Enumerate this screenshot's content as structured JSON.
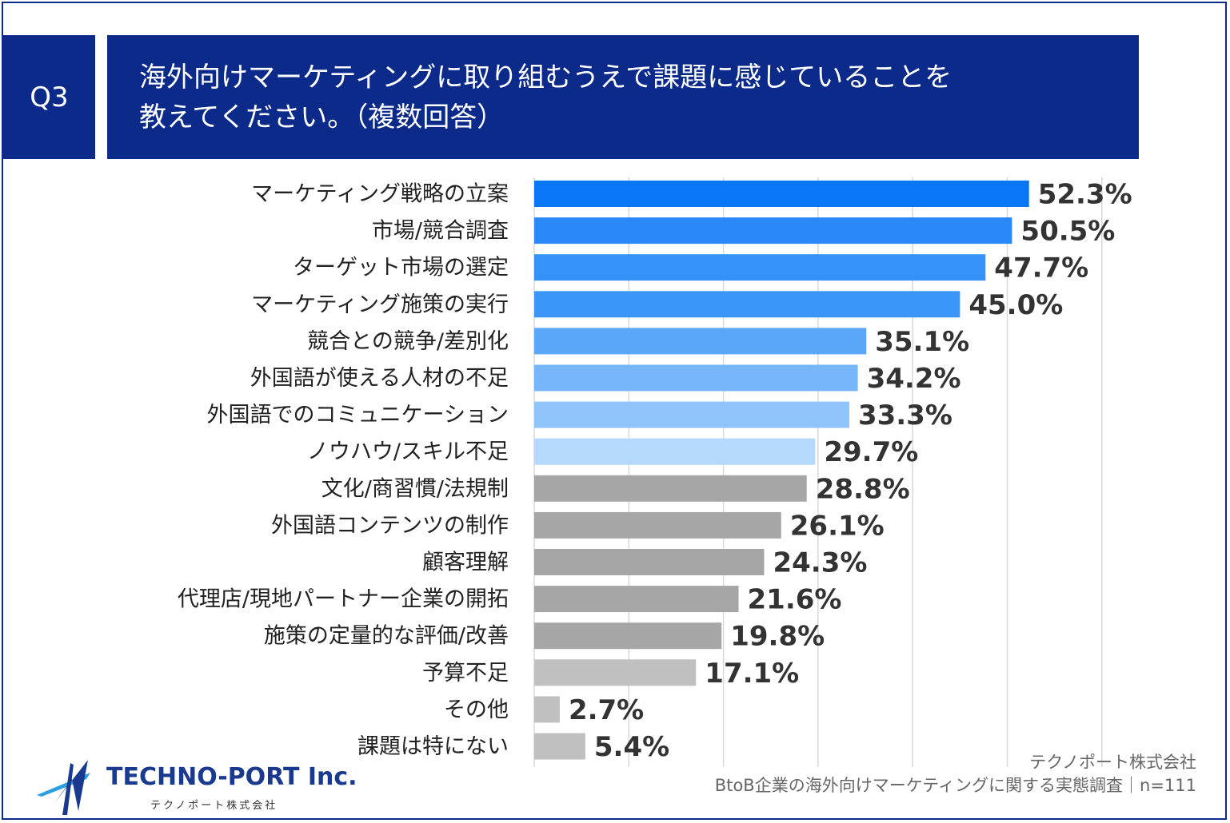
{
  "header": {
    "question_label": "Q3",
    "title_line1": "海外向けマーケティングに取り組むうえで課題に感じていることを",
    "title_line2": "教えてください。（複数回答）"
  },
  "chart_data": {
    "type": "bar",
    "orientation": "horizontal",
    "title": "海外向けマーケティングに取り組むうえで課題に感じていることを教えてください。（複数回答）",
    "categories": [
      "マーケティング戦略の立案",
      "市場/競合調査",
      "ターゲット市場の選定",
      "マーケティング施策の実行",
      "競合との競争/差別化",
      "外国語が使える人材の不足",
      "外国語でのコミュニケーション",
      "ノウハウ/スキル不足",
      "文化/商習慣/法規制",
      "外国語コンテンツの制作",
      "顧客理解",
      "代理店/現地パートナー企業の開拓",
      "施策の定量的な評価/改善",
      "予算不足",
      "その他",
      "課題は特にない"
    ],
    "values": [
      52.3,
      50.5,
      47.7,
      45.0,
      35.1,
      34.2,
      33.3,
      29.7,
      28.8,
      26.1,
      24.3,
      21.6,
      19.8,
      17.1,
      2.7,
      5.4
    ],
    "value_labels": [
      "52.3%",
      "50.5%",
      "47.7%",
      "45.0%",
      "35.1%",
      "34.2%",
      "33.3%",
      "29.7%",
      "28.8%",
      "26.1%",
      "24.3%",
      "21.6%",
      "19.8%",
      "17.1%",
      "2.7%",
      "5.4%"
    ],
    "colors": [
      "#0a75f5",
      "#2b89f7",
      "#3592f8",
      "#3b96f8",
      "#5aa7fa",
      "#77b6fb",
      "#92c4fc",
      "#b5d8fd",
      "#a6a6a6",
      "#a6a6a6",
      "#a6a6a6",
      "#a6a6a6",
      "#a6a6a6",
      "#c0c0c0",
      "#c0c0c0",
      "#c0c0c0"
    ],
    "xlim": [
      0,
      60
    ],
    "grid": true,
    "gridline_values": [
      10,
      20,
      30,
      40,
      50,
      60
    ],
    "unit": "%"
  },
  "footer": {
    "logo_name": "TECHNO-PORT Inc.",
    "logo_sub": "テクノポート株式会社",
    "credit_line1": "テクノポート株式会社",
    "credit_line2": "BtoB企業の海外向けマーケティングに関する実態調査｜n=111"
  }
}
